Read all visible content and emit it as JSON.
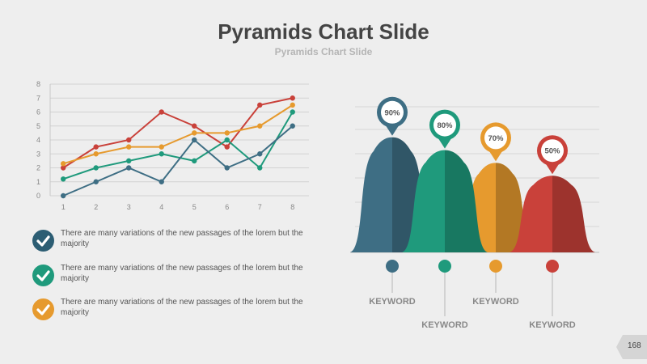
{
  "title": "Pyramids Chart Slide",
  "subtitle": "Pyramids Chart Slide",
  "page_number": "168",
  "notes": [
    {
      "text": "There are many variations of the  new passages of the  lorem but the majority",
      "color": "#2c5d73",
      "icon": "check-icon"
    },
    {
      "text": "There are many variations of the  new passages of the lorem but the majority",
      "color": "#1f9a7c",
      "icon": "check-icon"
    },
    {
      "text": "There are many variations of the  new passages of the lorem but the majority",
      "color": "#e69a2e",
      "icon": "check-icon"
    }
  ],
  "chart_data": [
    {
      "type": "line",
      "x": [
        1,
        2,
        3,
        4,
        5,
        6,
        7,
        8
      ],
      "xlim": [
        1,
        8
      ],
      "ylim": [
        0,
        8
      ],
      "yticks": [
        0,
        1,
        2,
        3,
        4,
        5,
        6,
        7,
        8
      ],
      "grid": true,
      "legend": "none",
      "series": [
        {
          "values": [
            2.0,
            3.5,
            4.0,
            6.0,
            5.0,
            3.5,
            6.5,
            7.0
          ],
          "color": "#c9413a"
        },
        {
          "values": [
            2.3,
            3.0,
            3.5,
            3.5,
            4.5,
            4.5,
            5.0,
            6.5
          ],
          "color": "#e69a2e"
        },
        {
          "values": [
            1.2,
            2.0,
            2.5,
            3.0,
            2.5,
            4.0,
            2.0,
            6.0
          ],
          "color": "#1f9a7c"
        },
        {
          "values": [
            0.0,
            1.0,
            2.0,
            1.0,
            4.0,
            2.0,
            3.0,
            5.0
          ],
          "color": "#3e6e84"
        }
      ]
    },
    {
      "type": "bar",
      "style": "pyramid",
      "categories": [
        "KEYWORD",
        "KEYWORD",
        "KEYWORD",
        "KEYWORD"
      ],
      "values": [
        90,
        80,
        70,
        50
      ],
      "labels": [
        "90%",
        "80%",
        "70%",
        "50%"
      ],
      "colors": [
        "#3e6e84",
        "#1f9a7c",
        "#e69a2e",
        "#c9413a"
      ]
    }
  ]
}
